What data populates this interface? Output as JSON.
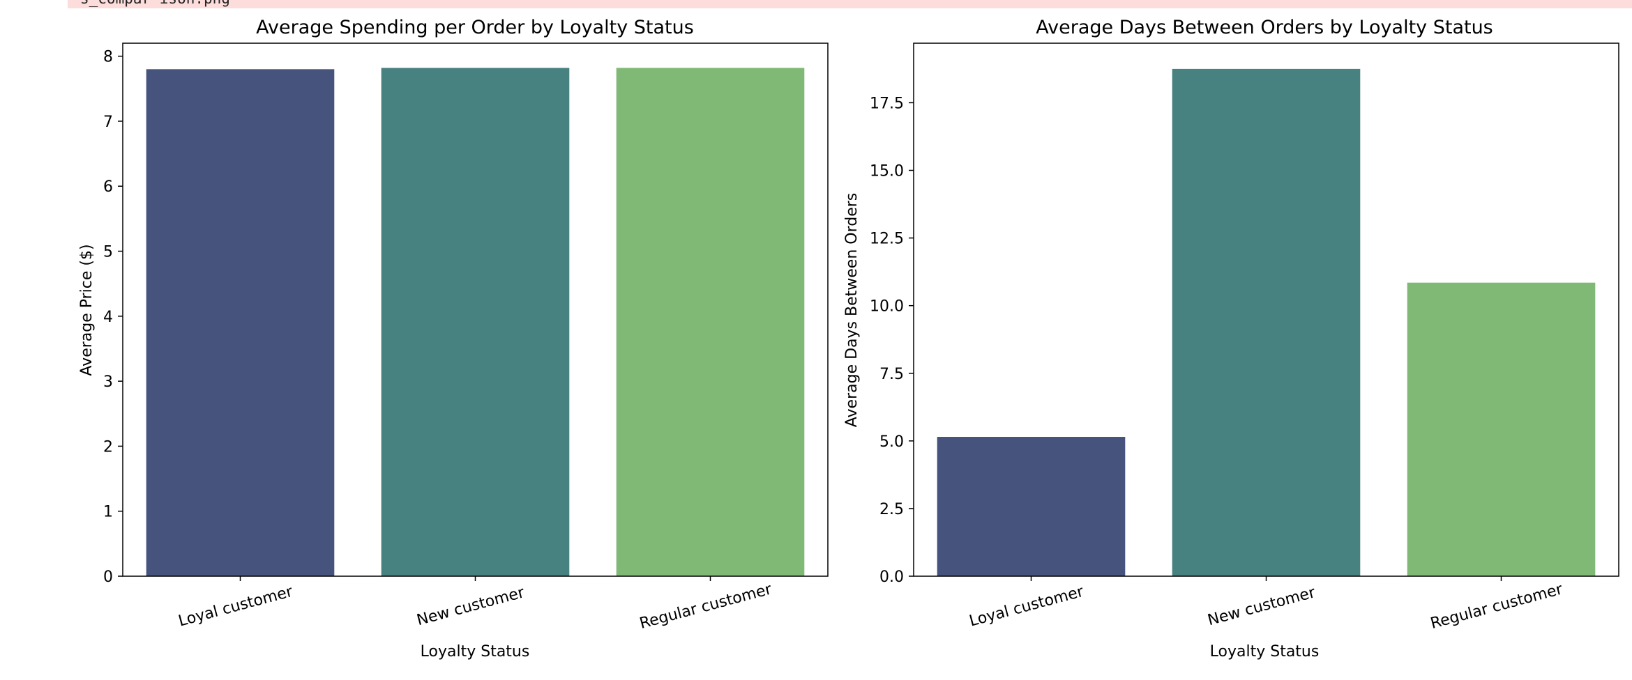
{
  "banner": {
    "text": "s_compar ison.png"
  },
  "chart_data": [
    {
      "type": "bar",
      "title": "Average Spending per Order by Loyalty Status",
      "xlabel": "Loyalty Status",
      "ylabel": "Average Price ($)",
      "categories": [
        "Loyal customer",
        "New customer",
        "Regular customer"
      ],
      "values": [
        7.8,
        7.82,
        7.82
      ],
      "colors": [
        "#46537c",
        "#478180",
        "#80b975"
      ],
      "ylim": [
        0,
        8.2
      ],
      "yticks": [
        0,
        1,
        2,
        3,
        4,
        5,
        6,
        7,
        8
      ],
      "ytick_labels": [
        "0",
        "1",
        "2",
        "3",
        "4",
        "5",
        "6",
        "7",
        "8"
      ],
      "grid": false
    },
    {
      "type": "bar",
      "title": "Average Days Between Orders by Loyalty Status",
      "xlabel": "Loyalty Status",
      "ylabel": "Average Days Between Orders",
      "categories": [
        "Loyal customer",
        "New customer",
        "Regular customer"
      ],
      "values": [
        5.15,
        18.75,
        10.85
      ],
      "colors": [
        "#46537c",
        "#478180",
        "#80b975"
      ],
      "ylim": [
        0,
        19.7
      ],
      "yticks": [
        0,
        2.5,
        5,
        7.5,
        10,
        12.5,
        15,
        17.5
      ],
      "ytick_labels": [
        "0.0",
        "2.5",
        "5.0",
        "7.5",
        "10.0",
        "12.5",
        "15.0",
        "17.5"
      ],
      "grid": false
    }
  ]
}
